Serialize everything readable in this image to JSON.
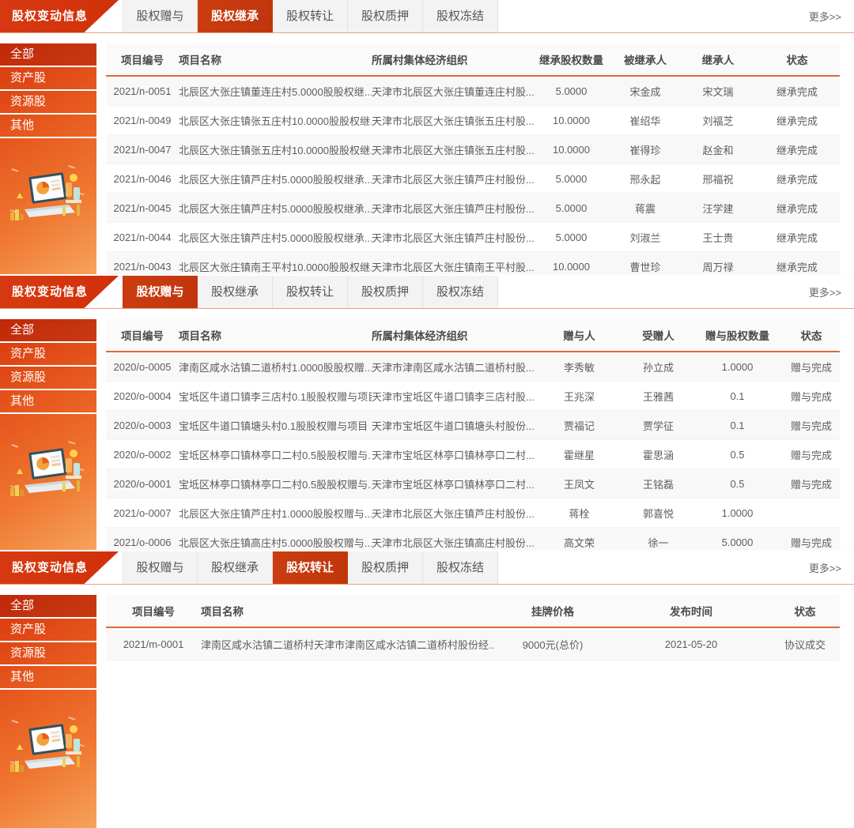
{
  "ui": {
    "banner_title": "股权变动信息",
    "more_label": "更多>>",
    "tabs": [
      "股权赠与",
      "股权继承",
      "股权转让",
      "股权质押",
      "股权冻结"
    ]
  },
  "colors": {
    "banner_red": "#d23410",
    "active_tab_red": "#c4390e",
    "header_underline_orange": "#e0673a",
    "tab_gray": "#f3f3f3",
    "sidebar_gradient_top": "#d7370e",
    "sidebar_gradient_bottom": "#f6a35b"
  },
  "sidebar": {
    "items": [
      "全部",
      "资产股",
      "资源股",
      "其他"
    ],
    "active_item": "全部"
  },
  "sections": [
    {
      "name": "equity-inheritance",
      "active_tab": "股权继承",
      "columns": [
        "项目编号",
        "项目名称",
        "所属村集体经济组织",
        "继承股权数量",
        "被继承人",
        "继承人",
        "状态"
      ],
      "rows": [
        [
          "2021/n-0051",
          "北辰区大张庄镇董连庄村5.0000股股权继...",
          "天津市北辰区大张庄镇董连庄村股...",
          "5.0000",
          "宋金成",
          "宋文瑞",
          "继承完成"
        ],
        [
          "2021/n-0049",
          "北辰区大张庄镇张五庄村10.0000股股权继...",
          "天津市北辰区大张庄镇张五庄村股...",
          "10.0000",
          "崔绍华",
          "刘福芝",
          "继承完成"
        ],
        [
          "2021/n-0047",
          "北辰区大张庄镇张五庄村10.0000股股权继...",
          "天津市北辰区大张庄镇张五庄村股...",
          "10.0000",
          "崔得珍",
          "赵金和",
          "继承完成"
        ],
        [
          "2021/n-0046",
          "北辰区大张庄镇芦庄村5.0000股股权继承...",
          "天津市北辰区大张庄镇芦庄村股份...",
          "5.0000",
          "邢永起",
          "邢福祝",
          "继承完成"
        ],
        [
          "2021/n-0045",
          "北辰区大张庄镇芦庄村5.0000股股权继承...",
          "天津市北辰区大张庄镇芦庄村股份...",
          "5.0000",
          "蒋震",
          "汪学建",
          "继承完成"
        ],
        [
          "2021/n-0044",
          "北辰区大张庄镇芦庄村5.0000股股权继承...",
          "天津市北辰区大张庄镇芦庄村股份...",
          "5.0000",
          "刘淑兰",
          "王士贵",
          "继承完成"
        ],
        [
          "2021/n-0043",
          "北辰区大张庄镇南王平村10.0000股股权继...",
          "天津市北辰区大张庄镇南王平村股...",
          "10.0000",
          "曹世珍",
          "周万禄",
          "继承完成"
        ]
      ]
    },
    {
      "name": "equity-gift",
      "active_tab": "股权赠与",
      "columns": [
        "项目编号",
        "项目名称",
        "所属村集体经济组织",
        "赠与人",
        "受赠人",
        "赠与股权数量",
        "状态"
      ],
      "rows": [
        [
          "2020/o-0005",
          "津南区咸水沽镇二道桥村1.0000股股权赠...",
          "天津市津南区咸水沽镇二道桥村股...",
          "李秀敏",
          "孙立成",
          "1.0000",
          "赠与完成"
        ],
        [
          "2020/o-0004",
          "宝坻区牛道口镇李三店村0.1股股权赠与项目",
          "天津市宝坻区牛道口镇李三店村股...",
          "王兆深",
          "王雅茜",
          "0.1",
          "赠与完成"
        ],
        [
          "2020/o-0003",
          "宝坻区牛道口镇塘头村0.1股股权赠与项目",
          "天津市宝坻区牛道口镇塘头村股份...",
          "贾福记",
          "贾学征",
          "0.1",
          "赠与完成"
        ],
        [
          "2020/o-0002",
          "宝坻区林亭口镇林亭口二村0.5股股权赠与...",
          "天津市宝坻区林亭口镇林亭口二村...",
          "霍继星",
          "霍思涵",
          "0.5",
          "赠与完成"
        ],
        [
          "2020/o-0001",
          "宝坻区林亭口镇林亭口二村0.5股股权赠与...",
          "天津市宝坻区林亭口镇林亭口二村...",
          "王凤文",
          "王铭磊",
          "0.5",
          "赠与完成"
        ],
        [
          "2021/o-0007",
          "北辰区大张庄镇芦庄村1.0000股股权赠与...",
          "天津市北辰区大张庄镇芦庄村股份...",
          "蒋栓",
          "郭喜悦",
          "1.0000",
          ""
        ],
        [
          "2021/o-0006",
          "北辰区大张庄镇高庄村5.0000股股权赠与...",
          "天津市北辰区大张庄镇高庄村股份...",
          "高文荣",
          "徐一",
          "5.0000",
          "赠与完成"
        ]
      ]
    },
    {
      "name": "equity-transfer",
      "active_tab": "股权转让",
      "columns": [
        "项目编号",
        "项目名称",
        "挂牌价格",
        "发布时间",
        "状态"
      ],
      "rows": [
        [
          "2021/m-0001",
          "津南区咸水沽镇二道桥村天津市津南区咸水沽镇二道桥村股份经...",
          "9000元(总价)",
          "2021-05-20",
          "协议成交"
        ]
      ]
    }
  ]
}
